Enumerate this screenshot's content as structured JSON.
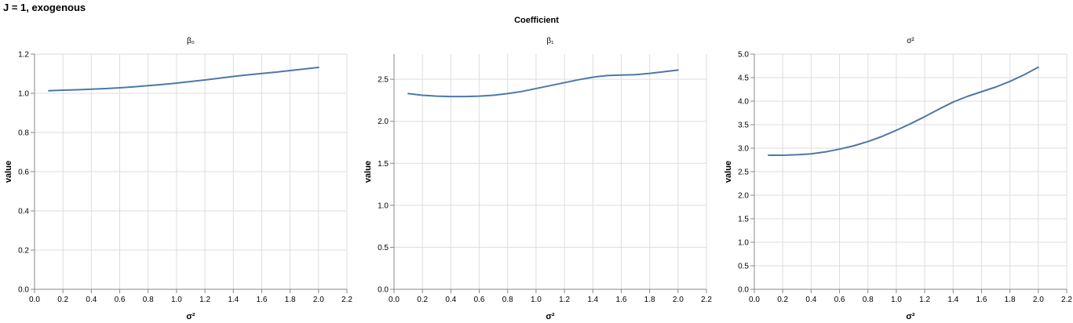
{
  "title": "J = 1, exogenous",
  "facet_header": "Coefficient",
  "chart_data": [
    {
      "type": "line",
      "title": "β₀",
      "xlabel": "σ²",
      "ylabel": "value",
      "xlim": [
        0,
        2.2
      ],
      "ylim": [
        0,
        1.2
      ],
      "xticks": [
        "0.0",
        "0.2",
        "0.4",
        "0.6",
        "0.8",
        "1.0",
        "1.2",
        "1.4",
        "1.6",
        "1.8",
        "2.0",
        "2.2"
      ],
      "yticks": [
        "0.0",
        "0.2",
        "0.4",
        "0.6",
        "0.8",
        "1.0",
        "1.2"
      ],
      "grid": true,
      "color": "#4c78a8",
      "x": [
        0.1,
        0.2,
        0.3,
        0.4,
        0.5,
        0.6,
        0.7,
        0.8,
        0.9,
        1.0,
        1.1,
        1.2,
        1.3,
        1.4,
        1.5,
        1.6,
        1.7,
        1.8,
        1.9,
        2.0
      ],
      "y": [
        1.013,
        1.016,
        1.018,
        1.021,
        1.024,
        1.028,
        1.033,
        1.039,
        1.045,
        1.052,
        1.06,
        1.068,
        1.077,
        1.086,
        1.094,
        1.101,
        1.108,
        1.116,
        1.124,
        1.132
      ]
    },
    {
      "type": "line",
      "title": "β₁",
      "xlabel": "σ²",
      "ylabel": "value",
      "xlim": [
        0,
        2.2
      ],
      "ylim": [
        0,
        2.8
      ],
      "xticks": [
        "0.0",
        "0.2",
        "0.4",
        "0.6",
        "0.8",
        "1.0",
        "1.2",
        "1.4",
        "1.6",
        "1.8",
        "2.0",
        "2.2"
      ],
      "yticks": [
        "0.0",
        "0.5",
        "1.0",
        "1.5",
        "2.0",
        "2.5"
      ],
      "grid": true,
      "color": "#4c78a8",
      "x": [
        0.1,
        0.2,
        0.3,
        0.4,
        0.5,
        0.6,
        0.7,
        0.8,
        0.9,
        1.0,
        1.1,
        1.2,
        1.3,
        1.4,
        1.5,
        1.6,
        1.7,
        1.8,
        1.9,
        2.0
      ],
      "y": [
        2.33,
        2.31,
        2.3,
        2.295,
        2.295,
        2.3,
        2.31,
        2.33,
        2.355,
        2.39,
        2.425,
        2.46,
        2.495,
        2.525,
        2.545,
        2.55,
        2.555,
        2.57,
        2.59,
        2.61
      ]
    },
    {
      "type": "line",
      "title": "σ²",
      "xlabel": "σ²",
      "ylabel": "value",
      "xlim": [
        0,
        2.2
      ],
      "ylim": [
        0,
        5.0
      ],
      "xticks": [
        "0.0",
        "0.2",
        "0.4",
        "0.6",
        "0.8",
        "1.0",
        "1.2",
        "1.4",
        "1.6",
        "1.8",
        "2.0",
        "2.2"
      ],
      "yticks": [
        "0.0",
        "0.5",
        "1.0",
        "1.5",
        "2.0",
        "2.5",
        "3.0",
        "3.5",
        "4.0",
        "4.5",
        "5.0"
      ],
      "grid": true,
      "color": "#4c78a8",
      "x": [
        0.1,
        0.2,
        0.3,
        0.4,
        0.5,
        0.6,
        0.7,
        0.8,
        0.9,
        1.0,
        1.1,
        1.2,
        1.3,
        1.4,
        1.5,
        1.6,
        1.7,
        1.8,
        1.9,
        2.0
      ],
      "y": [
        2.85,
        2.85,
        2.86,
        2.88,
        2.92,
        2.98,
        3.05,
        3.14,
        3.25,
        3.38,
        3.52,
        3.67,
        3.83,
        3.98,
        4.1,
        4.2,
        4.3,
        4.42,
        4.56,
        4.72
      ]
    }
  ]
}
